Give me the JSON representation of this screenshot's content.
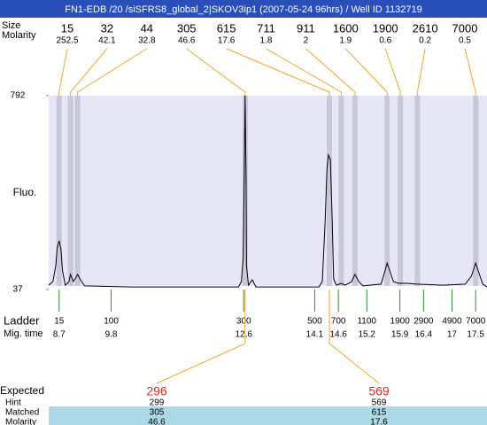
{
  "title": "FN1-EDB /20 /siSFRS8_global_2|SKOV3ip1 (2007-05-24 96hrs) / Well ID 1132719",
  "peaks": {
    "size_label": "Size",
    "molarity_label": "Molarity",
    "sizes": [
      15,
      32,
      44,
      305,
      615,
      711,
      911,
      1600,
      1900,
      2610,
      7000
    ],
    "molarities": [
      252.5,
      42.1,
      32.8,
      46.6,
      17.6,
      1.8,
      2,
      1.9,
      0.6,
      0.2,
      0.5
    ],
    "times": [
      8.7,
      8.94,
      9.09,
      12.63,
      14.41,
      14.66,
      14.95,
      15.63,
      15.91,
      16.27,
      17.5
    ]
  },
  "chart_data": {
    "type": "line",
    "ylabel": "Fluo.",
    "xlim": [
      8.48,
      17.74
    ],
    "ylim": [
      37,
      792
    ],
    "yticks": [
      37,
      792
    ],
    "color": "#000000",
    "x": [
      8.48,
      8.57,
      8.63,
      8.66,
      8.7,
      8.74,
      8.77,
      8.83,
      8.91,
      8.94,
      9.0,
      9.05,
      9.09,
      9.15,
      9.24,
      10.25,
      12.49,
      12.55,
      12.59,
      12.61,
      12.63,
      12.65,
      12.66,
      12.7,
      12.78,
      12.86,
      14.19,
      14.26,
      14.32,
      14.36,
      14.39,
      14.43,
      14.47,
      14.5,
      14.56,
      14.66,
      14.75,
      14.88,
      14.95,
      15.03,
      15.12,
      15.5,
      15.59,
      15.63,
      15.68,
      15.76,
      15.87,
      16.06,
      16.25,
      16.81,
      17.28,
      17.41,
      17.5,
      17.58,
      17.65,
      17.74
    ],
    "values": [
      54,
      68,
      130,
      199,
      227,
      192,
      113,
      54,
      68,
      96,
      68,
      82,
      96,
      75,
      51,
      47,
      47,
      68,
      165,
      475,
      792,
      475,
      130,
      54,
      75,
      47,
      47,
      68,
      302,
      509,
      561,
      544,
      302,
      78,
      54,
      61,
      54,
      68,
      96,
      68,
      51,
      58,
      113,
      140,
      113,
      68,
      61,
      61,
      58,
      54,
      58,
      89,
      140,
      96,
      58,
      47
    ]
  },
  "ladder": {
    "label": "Ladder",
    "time_label": "Mig. time",
    "sizes": [
      15,
      100,
      300,
      500,
      700,
      1100,
      1900,
      2900,
      4900,
      7000
    ],
    "times": [
      8.7,
      9.8,
      12.6,
      14.1,
      14.6,
      15.2,
      15.9,
      16.4,
      17,
      17.5
    ]
  },
  "results": {
    "labels": [
      "Expected",
      "Hint",
      "Matched",
      "Molarity"
    ],
    "expected": [
      296,
      569
    ],
    "hint": [
      299,
      569
    ],
    "matched": [
      305,
      615
    ],
    "molarity": [
      46.6,
      17.6
    ]
  }
}
